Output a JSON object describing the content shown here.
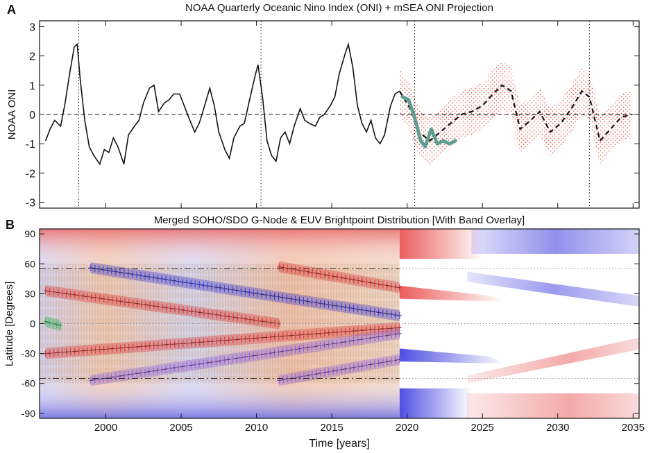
{
  "panel_labels": {
    "a": "A",
    "b": "B"
  },
  "colors": {
    "oni_line": "#111111",
    "projection_dashed": "#111111",
    "observed_recent": "#5f9e93",
    "uncertainty_dots": "#e8503c",
    "band_red": "#e23b3b",
    "band_blue": "#3b3be0",
    "band_purple": "#8e5bd6",
    "band_green": "#39b95a",
    "brightpoint_orange": "#f0a35a"
  },
  "chart_data": [
    {
      "type": "line",
      "title": "NOAA Quarterly Oceanic Nino Index (ONI) + mSEA ONI Projection",
      "xlabel": "",
      "ylabel": "NOAA ONI",
      "xlim": [
        1995.6,
        2035.4
      ],
      "ylim": [
        -3.2,
        3.2
      ],
      "yticks": [
        3,
        2,
        1,
        0,
        -1,
        -2,
        -3
      ],
      "reference_lines": {
        "horizontal_dashed_y": 0,
        "vertical_dotted_x": [
          1998.2,
          2010.3,
          2020.5,
          2032.1
        ]
      },
      "series": [
        {
          "name": "NOAA ONI",
          "style": "solid-black",
          "x": [
            1996.0,
            1996.3,
            1996.6,
            1997.0,
            1997.3,
            1997.6,
            1997.9,
            1998.1,
            1998.3,
            1998.6,
            1998.9,
            1999.2,
            1999.6,
            1999.9,
            2000.2,
            2000.5,
            2000.8,
            2001.2,
            2001.5,
            2001.9,
            2002.2,
            2002.5,
            2002.9,
            2003.2,
            2003.5,
            2003.9,
            2004.2,
            2004.5,
            2004.9,
            2005.2,
            2005.5,
            2005.9,
            2006.2,
            2006.5,
            2006.9,
            2007.2,
            2007.5,
            2007.9,
            2008.2,
            2008.5,
            2008.9,
            2009.2,
            2009.5,
            2009.9,
            2010.1,
            2010.4,
            2010.7,
            2011.0,
            2011.3,
            2011.6,
            2011.9,
            2012.2,
            2012.5,
            2012.9,
            2013.2,
            2013.5,
            2013.9,
            2014.2,
            2014.5,
            2014.9,
            2015.2,
            2015.5,
            2015.9,
            2016.1,
            2016.4,
            2016.7,
            2017.0,
            2017.3,
            2017.6,
            2017.9,
            2018.2,
            2018.5,
            2018.9,
            2019.2,
            2019.5
          ],
          "y": [
            -0.9,
            -0.5,
            -0.2,
            -0.4,
            0.4,
            1.4,
            2.3,
            2.4,
            1.2,
            -0.2,
            -1.1,
            -1.4,
            -1.7,
            -1.2,
            -1.3,
            -0.8,
            -1.1,
            -1.7,
            -0.7,
            -0.4,
            -0.2,
            0.4,
            0.9,
            1.0,
            0.1,
            0.4,
            0.5,
            0.7,
            0.7,
            0.3,
            -0.1,
            -0.6,
            -0.3,
            0.2,
            0.9,
            0.3,
            -0.6,
            -1.2,
            -1.5,
            -0.8,
            -0.4,
            -0.3,
            0.4,
            1.3,
            1.7,
            0.6,
            -0.9,
            -1.4,
            -1.6,
            -0.8,
            -0.6,
            -1.0,
            -0.4,
            0.2,
            -0.2,
            -0.3,
            -0.4,
            -0.1,
            0.0,
            0.3,
            0.6,
            1.4,
            2.1,
            2.4,
            1.6,
            0.3,
            -0.3,
            -0.6,
            -0.2,
            -0.8,
            -1.0,
            -0.7,
            0.3,
            0.7,
            0.8
          ]
        },
        {
          "name": "Observed (post-2019)",
          "style": "thick-teal",
          "x": [
            2019.7,
            2020.1,
            2020.5,
            2020.9,
            2021.2,
            2021.6,
            2022.0,
            2022.4,
            2022.8,
            2023.2
          ],
          "y": [
            0.6,
            0.5,
            -0.1,
            -0.9,
            -1.1,
            -0.5,
            -1.0,
            -0.9,
            -1.0,
            -0.9
          ]
        },
        {
          "name": "mSEA ONI Projection",
          "style": "dashed-black",
          "x": [
            2019.5,
            2020.2,
            2020.8,
            2021.5,
            2022.2,
            2022.9,
            2023.6,
            2024.3,
            2025.0,
            2025.7,
            2026.3,
            2026.9,
            2027.5,
            2028.2,
            2028.8,
            2029.5,
            2030.2,
            2030.9,
            2031.6,
            2032.1,
            2032.8,
            2033.5,
            2034.2,
            2034.9
          ],
          "y": [
            0.8,
            0.2,
            -0.6,
            -0.9,
            -0.6,
            -0.3,
            0.0,
            0.1,
            0.3,
            0.7,
            1.0,
            0.8,
            -0.5,
            -0.2,
            0.1,
            -0.6,
            -0.3,
            0.2,
            0.8,
            0.6,
            -0.9,
            -0.5,
            -0.1,
            0.0
          ]
        }
      ],
      "uncertainty_band": {
        "x_start": 2019.5,
        "x_end": 2034.9,
        "half_width": 0.8
      }
    },
    {
      "type": "heatmap",
      "title": "Merged SOHO/SDO G-Node & EUV Brightpoint Distribution [With Band Overlay]",
      "xlabel": "Time [years]",
      "ylabel": "Latitude [Degrees]",
      "xlim": [
        1995.6,
        2035.4
      ],
      "ylim": [
        -95,
        95
      ],
      "xticks": [
        2000,
        2005,
        2010,
        2015,
        2020,
        2025,
        2030,
        2035
      ],
      "yticks": [
        90,
        60,
        30,
        0,
        -30,
        -60,
        -90
      ],
      "reference_lines": {
        "horizontal_dashed_y": [
          55,
          -55
        ],
        "horizontal_dotted_y": [
          0
        ],
        "observations_end_x": 2019.5
      },
      "bands": [
        {
          "name": "north-red-band",
          "color": "red",
          "x_start": 1996.0,
          "x_end": 2011.5,
          "lat_start": 33,
          "lat_end": 0
        },
        {
          "name": "south-red-band",
          "color": "red",
          "x_start": 1996.0,
          "x_end": 2019.5,
          "lat_start": -30,
          "lat_end": -4
        },
        {
          "name": "north-blue-band",
          "color": "blue",
          "x_start": 1999.0,
          "x_end": 2019.5,
          "lat_start": 56,
          "lat_end": 8
        },
        {
          "name": "south-purple-band",
          "color": "purple",
          "x_start": 1999.0,
          "x_end": 2019.5,
          "lat_start": -57,
          "lat_end": -10
        },
        {
          "name": "north-high-band",
          "color": "red",
          "x_start": 2011.5,
          "x_end": 2019.5,
          "lat_start": 57,
          "lat_end": 36
        },
        {
          "name": "south-high-band",
          "color": "purple",
          "x_start": 2011.5,
          "x_end": 2019.5,
          "lat_start": -57,
          "lat_end": -36
        },
        {
          "name": "equatorial-green-band",
          "color": "green",
          "x_start": 1996.0,
          "x_end": 1997.0,
          "lat_start": 2,
          "lat_end": -2
        }
      ]
    }
  ]
}
